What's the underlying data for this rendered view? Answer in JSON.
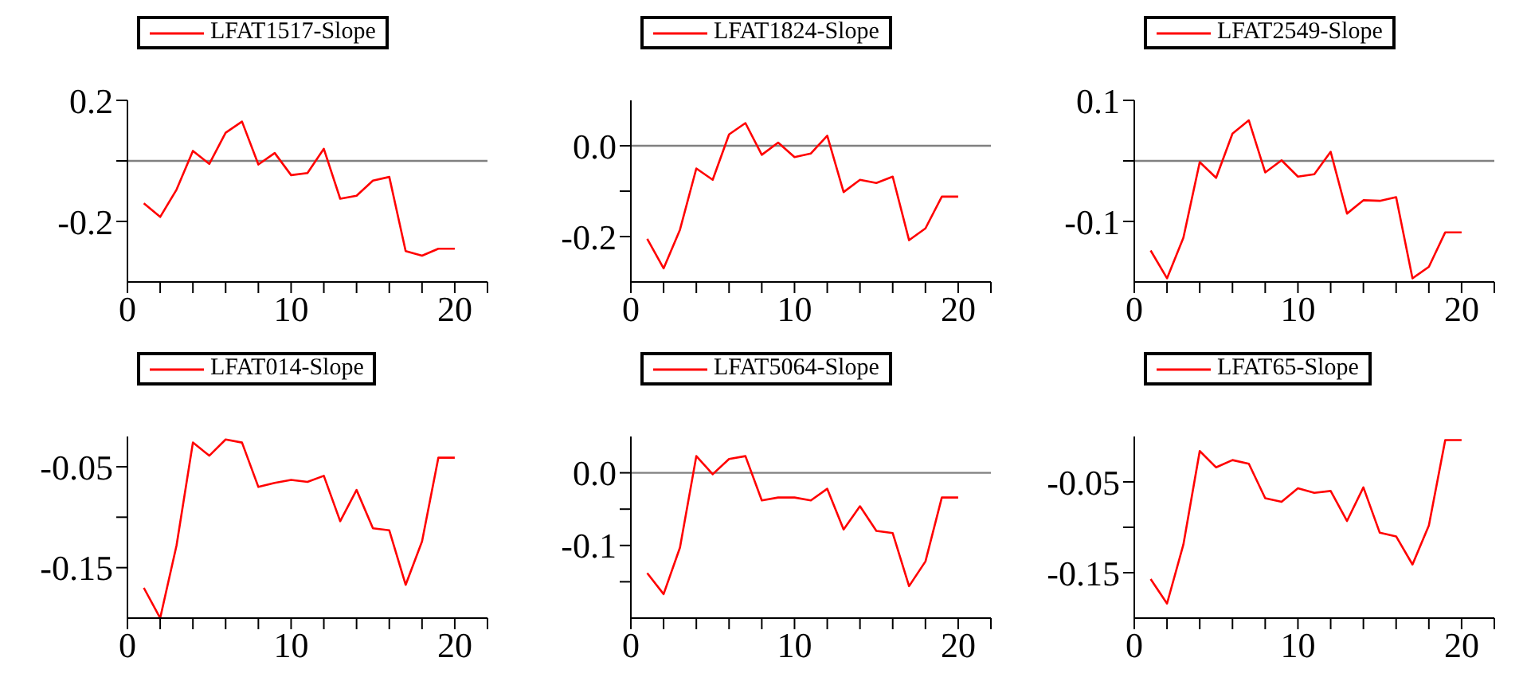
{
  "chart_data": [
    {
      "type": "line",
      "x": [
        1,
        2,
        3,
        4,
        5,
        6,
        7,
        8,
        9,
        10,
        11,
        12,
        13,
        14,
        15,
        16,
        17,
        18,
        19,
        20
      ],
      "series": [
        {
          "name": "LFAT1517-Slope",
          "color": "#ff0000",
          "values": [
            -0.14,
            -0.185,
            -0.095,
            0.033,
            -0.01,
            0.093,
            0.13,
            -0.012,
            0.026,
            -0.047,
            -0.04,
            0.04,
            -0.125,
            -0.115,
            -0.065,
            -0.053,
            -0.298,
            -0.313,
            -0.29,
            -0.29
          ]
        }
      ],
      "xlim": [
        0,
        22
      ],
      "xticks": [
        0,
        {
          "value": 2,
          "label": null
        },
        {
          "value": 4,
          "label": null
        },
        {
          "value": 6,
          "label": null
        },
        {
          "value": 8,
          "label": null
        },
        10,
        {
          "value": 12,
          "label": null
        },
        {
          "value": 14,
          "label": null
        },
        {
          "value": 16,
          "label": null
        },
        {
          "value": 18,
          "label": null
        },
        20,
        {
          "value": 22,
          "label": null
        }
      ],
      "ylim": [
        -0.4,
        0.2
      ],
      "yticks": [
        -0.2,
        {
          "value": 0,
          "label": null
        },
        0.2
      ],
      "ref_lines": [
        {
          "axis": "y",
          "value": 0,
          "color": "#808080"
        }
      ],
      "legend": "top left",
      "marker": "none"
    },
    {
      "type": "line",
      "x": [
        1,
        2,
        3,
        4,
        5,
        6,
        7,
        8,
        9,
        10,
        11,
        12,
        13,
        14,
        15,
        16,
        17,
        18,
        19,
        20
      ],
      "series": [
        {
          "name": "LFAT1824-Slope",
          "color": "#ff0000",
          "values": [
            -0.205,
            -0.27,
            -0.185,
            -0.05,
            -0.075,
            0.025,
            0.05,
            -0.02,
            0.007,
            -0.025,
            -0.017,
            0.022,
            -0.102,
            -0.075,
            -0.082,
            -0.068,
            -0.208,
            -0.182,
            -0.112,
            -0.112
          ]
        }
      ],
      "xlim": [
        0,
        22
      ],
      "xticks": [
        0,
        {
          "value": 2,
          "label": null
        },
        {
          "value": 4,
          "label": null
        },
        {
          "value": 6,
          "label": null
        },
        {
          "value": 8,
          "label": null
        },
        10,
        {
          "value": 12,
          "label": null
        },
        {
          "value": 14,
          "label": null
        },
        {
          "value": 16,
          "label": null
        },
        {
          "value": 18,
          "label": null
        },
        20,
        {
          "value": 22,
          "label": null
        }
      ],
      "ylim": [
        -0.3,
        0.1
      ],
      "yticks": [
        -0.2,
        {
          "value": -0.1,
          "label": null
        },
        {
          "value": 0,
          "label": "0.0"
        }
      ],
      "ref_lines": [
        {
          "axis": "y",
          "value": 0,
          "color": "#808080"
        }
      ],
      "legend": "top left",
      "marker": "none"
    },
    {
      "type": "line",
      "x": [
        1,
        2,
        3,
        4,
        5,
        6,
        7,
        8,
        9,
        10,
        11,
        12,
        13,
        14,
        15,
        16,
        17,
        18,
        19,
        20
      ],
      "series": [
        {
          "name": "LFAT2549-Slope",
          "color": "#ff0000",
          "values": [
            -0.148,
            -0.194,
            -0.127,
            -0.002,
            -0.028,
            0.045,
            0.067,
            -0.019,
            0.001,
            -0.026,
            -0.022,
            0.015,
            -0.087,
            -0.065,
            -0.066,
            -0.06,
            -0.194,
            -0.175,
            -0.118,
            -0.118
          ]
        }
      ],
      "xlim": [
        0,
        22
      ],
      "xticks": [
        0,
        {
          "value": 2,
          "label": null
        },
        {
          "value": 4,
          "label": null
        },
        {
          "value": 6,
          "label": null
        },
        {
          "value": 8,
          "label": null
        },
        10,
        {
          "value": 12,
          "label": null
        },
        {
          "value": 14,
          "label": null
        },
        {
          "value": 16,
          "label": null
        },
        {
          "value": 18,
          "label": null
        },
        20,
        {
          "value": 22,
          "label": null
        }
      ],
      "ylim": [
        -0.2,
        0.1
      ],
      "yticks": [
        -0.1,
        {
          "value": 0,
          "label": null
        },
        0.1
      ],
      "ref_lines": [
        {
          "axis": "y",
          "value": 0,
          "color": "#808080"
        }
      ],
      "legend": "top left",
      "marker": "none"
    },
    {
      "type": "line",
      "x": [
        1,
        2,
        3,
        4,
        5,
        6,
        7,
        8,
        9,
        10,
        11,
        12,
        13,
        14,
        15,
        16,
        17,
        18,
        19,
        20
      ],
      "series": [
        {
          "name": "LFAT014-Slope",
          "color": "#ff0000",
          "values": [
            -0.17,
            -0.2,
            -0.128,
            -0.026,
            -0.039,
            -0.023,
            -0.026,
            -0.07,
            -0.066,
            -0.063,
            -0.065,
            -0.059,
            -0.104,
            -0.073,
            -0.111,
            -0.113,
            -0.167,
            -0.124,
            -0.041,
            -0.041
          ]
        }
      ],
      "xlim": [
        0,
        22
      ],
      "xticks": [
        0,
        {
          "value": 2,
          "label": null
        },
        {
          "value": 4,
          "label": null
        },
        {
          "value": 6,
          "label": null
        },
        {
          "value": 8,
          "label": null
        },
        10,
        {
          "value": 12,
          "label": null
        },
        {
          "value": 14,
          "label": null
        },
        {
          "value": 16,
          "label": null
        },
        {
          "value": 18,
          "label": null
        },
        20,
        {
          "value": 22,
          "label": null
        }
      ],
      "ylim": [
        -0.2,
        -0.02
      ],
      "yticks": [
        -0.15,
        {
          "value": -0.1,
          "label": null
        },
        -0.05
      ],
      "legend": "top left",
      "marker": "none"
    },
    {
      "type": "line",
      "x": [
        1,
        2,
        3,
        4,
        5,
        6,
        7,
        8,
        9,
        10,
        11,
        12,
        13,
        14,
        15,
        16,
        17,
        18,
        19,
        20
      ],
      "series": [
        {
          "name": "LFAT5064-Slope",
          "color": "#ff0000",
          "values": [
            -0.138,
            -0.167,
            -0.103,
            0.023,
            -0.002,
            0.019,
            0.023,
            -0.038,
            -0.034,
            -0.034,
            -0.038,
            -0.022,
            -0.078,
            -0.046,
            -0.08,
            -0.083,
            -0.156,
            -0.122,
            -0.034,
            -0.034
          ]
        }
      ],
      "xlim": [
        0,
        22
      ],
      "xticks": [
        0,
        {
          "value": 2,
          "label": null
        },
        {
          "value": 4,
          "label": null
        },
        {
          "value": 6,
          "label": null
        },
        {
          "value": 8,
          "label": null
        },
        10,
        {
          "value": 12,
          "label": null
        },
        {
          "value": 14,
          "label": null
        },
        {
          "value": 16,
          "label": null
        },
        {
          "value": 18,
          "label": null
        },
        20,
        {
          "value": 22,
          "label": null
        }
      ],
      "ylim": [
        -0.2,
        0.05
      ],
      "yticks": [
        {
          "value": -0.15,
          "label": null
        },
        -0.1,
        {
          "value": -0.05,
          "label": null
        },
        {
          "value": 0,
          "label": "0.0"
        }
      ],
      "ref_lines": [
        {
          "axis": "y",
          "value": 0,
          "color": "#808080"
        }
      ],
      "legend": "top left",
      "marker": "none"
    },
    {
      "type": "line",
      "x": [
        1,
        2,
        3,
        4,
        5,
        6,
        7,
        8,
        9,
        10,
        11,
        12,
        13,
        14,
        15,
        16,
        17,
        18,
        19,
        20
      ],
      "series": [
        {
          "name": "LFAT65-Slope",
          "color": "#ff0000",
          "values": [
            -0.157,
            -0.184,
            -0.119,
            -0.016,
            -0.034,
            -0.026,
            -0.03,
            -0.068,
            -0.072,
            -0.057,
            -0.062,
            -0.06,
            -0.093,
            -0.056,
            -0.106,
            -0.11,
            -0.141,
            -0.098,
            -0.004,
            -0.004
          ]
        }
      ],
      "xlim": [
        0,
        22
      ],
      "xticks": [
        0,
        {
          "value": 2,
          "label": null
        },
        {
          "value": 4,
          "label": null
        },
        {
          "value": 6,
          "label": null
        },
        {
          "value": 8,
          "label": null
        },
        10,
        {
          "value": 12,
          "label": null
        },
        {
          "value": 14,
          "label": null
        },
        {
          "value": 16,
          "label": null
        },
        {
          "value": 18,
          "label": null
        },
        20,
        {
          "value": 22,
          "label": null
        }
      ],
      "ylim": [
        -0.2,
        0
      ],
      "yticks": [
        -0.15,
        {
          "value": -0.1,
          "label": null
        },
        -0.05
      ],
      "legend": "top left",
      "marker": "none"
    }
  ]
}
